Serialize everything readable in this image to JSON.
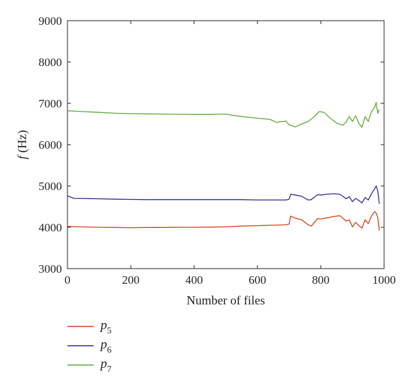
{
  "chart_data": {
    "type": "line",
    "xlabel": "Number of files",
    "ylabel_italic": "f",
    "ylabel_unit": " (Hz)",
    "xlim": [
      0,
      1000
    ],
    "ylim": [
      3000,
      9000
    ],
    "xticks": [
      0,
      200,
      400,
      600,
      800,
      1000
    ],
    "yticks": [
      3000,
      4000,
      5000,
      6000,
      7000,
      8000,
      9000
    ],
    "grid": false,
    "legend_position": "bottom-left, below plot",
    "series": [
      {
        "name_base": "p",
        "name_sub": "5",
        "color": "#d4401a",
        "x": [
          0,
          40,
          100,
          150,
          200,
          250,
          300,
          350,
          400,
          450,
          500,
          550,
          600,
          650,
          690,
          700,
          705,
          720,
          740,
          760,
          770,
          790,
          800,
          820,
          840,
          860,
          870,
          880,
          890,
          900,
          910,
          920,
          930,
          940,
          950,
          960,
          970,
          975,
          980,
          985
        ],
        "y": [
          4020,
          4010,
          4000,
          3995,
          3990,
          3995,
          3995,
          4000,
          4000,
          4005,
          4010,
          4030,
          4040,
          4050,
          4060,
          4080,
          4270,
          4220,
          4180,
          4060,
          4030,
          4210,
          4200,
          4230,
          4260,
          4280,
          4220,
          4150,
          4180,
          4010,
          4120,
          4040,
          3980,
          4180,
          4090,
          4270,
          4380,
          4340,
          4240,
          3920
        ]
      },
      {
        "name_base": "p",
        "name_sub": "6",
        "color": "#2e2a8c",
        "x": [
          0,
          20,
          100,
          150,
          200,
          250,
          300,
          350,
          400,
          450,
          500,
          550,
          600,
          650,
          690,
          700,
          705,
          720,
          740,
          760,
          770,
          790,
          800,
          820,
          840,
          860,
          870,
          880,
          890,
          900,
          910,
          920,
          930,
          940,
          950,
          960,
          970,
          975,
          980,
          985
        ],
        "y": [
          4760,
          4700,
          4690,
          4680,
          4675,
          4670,
          4670,
          4670,
          4670,
          4670,
          4670,
          4670,
          4660,
          4660,
          4660,
          4680,
          4800,
          4780,
          4750,
          4660,
          4670,
          4790,
          4780,
          4800,
          4810,
          4800,
          4750,
          4690,
          4740,
          4620,
          4700,
          4650,
          4590,
          4720,
          4660,
          4810,
          4930,
          5000,
          4880,
          4570
        ]
      },
      {
        "name_base": "p",
        "name_sub": "7",
        "color": "#5ea83a",
        "x": [
          0,
          50,
          100,
          150,
          200,
          250,
          300,
          350,
          400,
          450,
          500,
          520,
          550,
          600,
          640,
          660,
          690,
          700,
          720,
          740,
          760,
          780,
          795,
          810,
          830,
          850,
          870,
          880,
          890,
          900,
          910,
          920,
          930,
          940,
          950,
          960,
          970,
          975,
          980,
          985
        ],
        "y": [
          6820,
          6800,
          6780,
          6760,
          6750,
          6745,
          6740,
          6735,
          6730,
          6730,
          6740,
          6710,
          6680,
          6640,
          6610,
          6540,
          6570,
          6480,
          6430,
          6500,
          6560,
          6680,
          6800,
          6780,
          6640,
          6520,
          6470,
          6550,
          6680,
          6560,
          6700,
          6520,
          6420,
          6680,
          6560,
          6800,
          6900,
          7020,
          6760,
          6850
        ]
      }
    ]
  }
}
